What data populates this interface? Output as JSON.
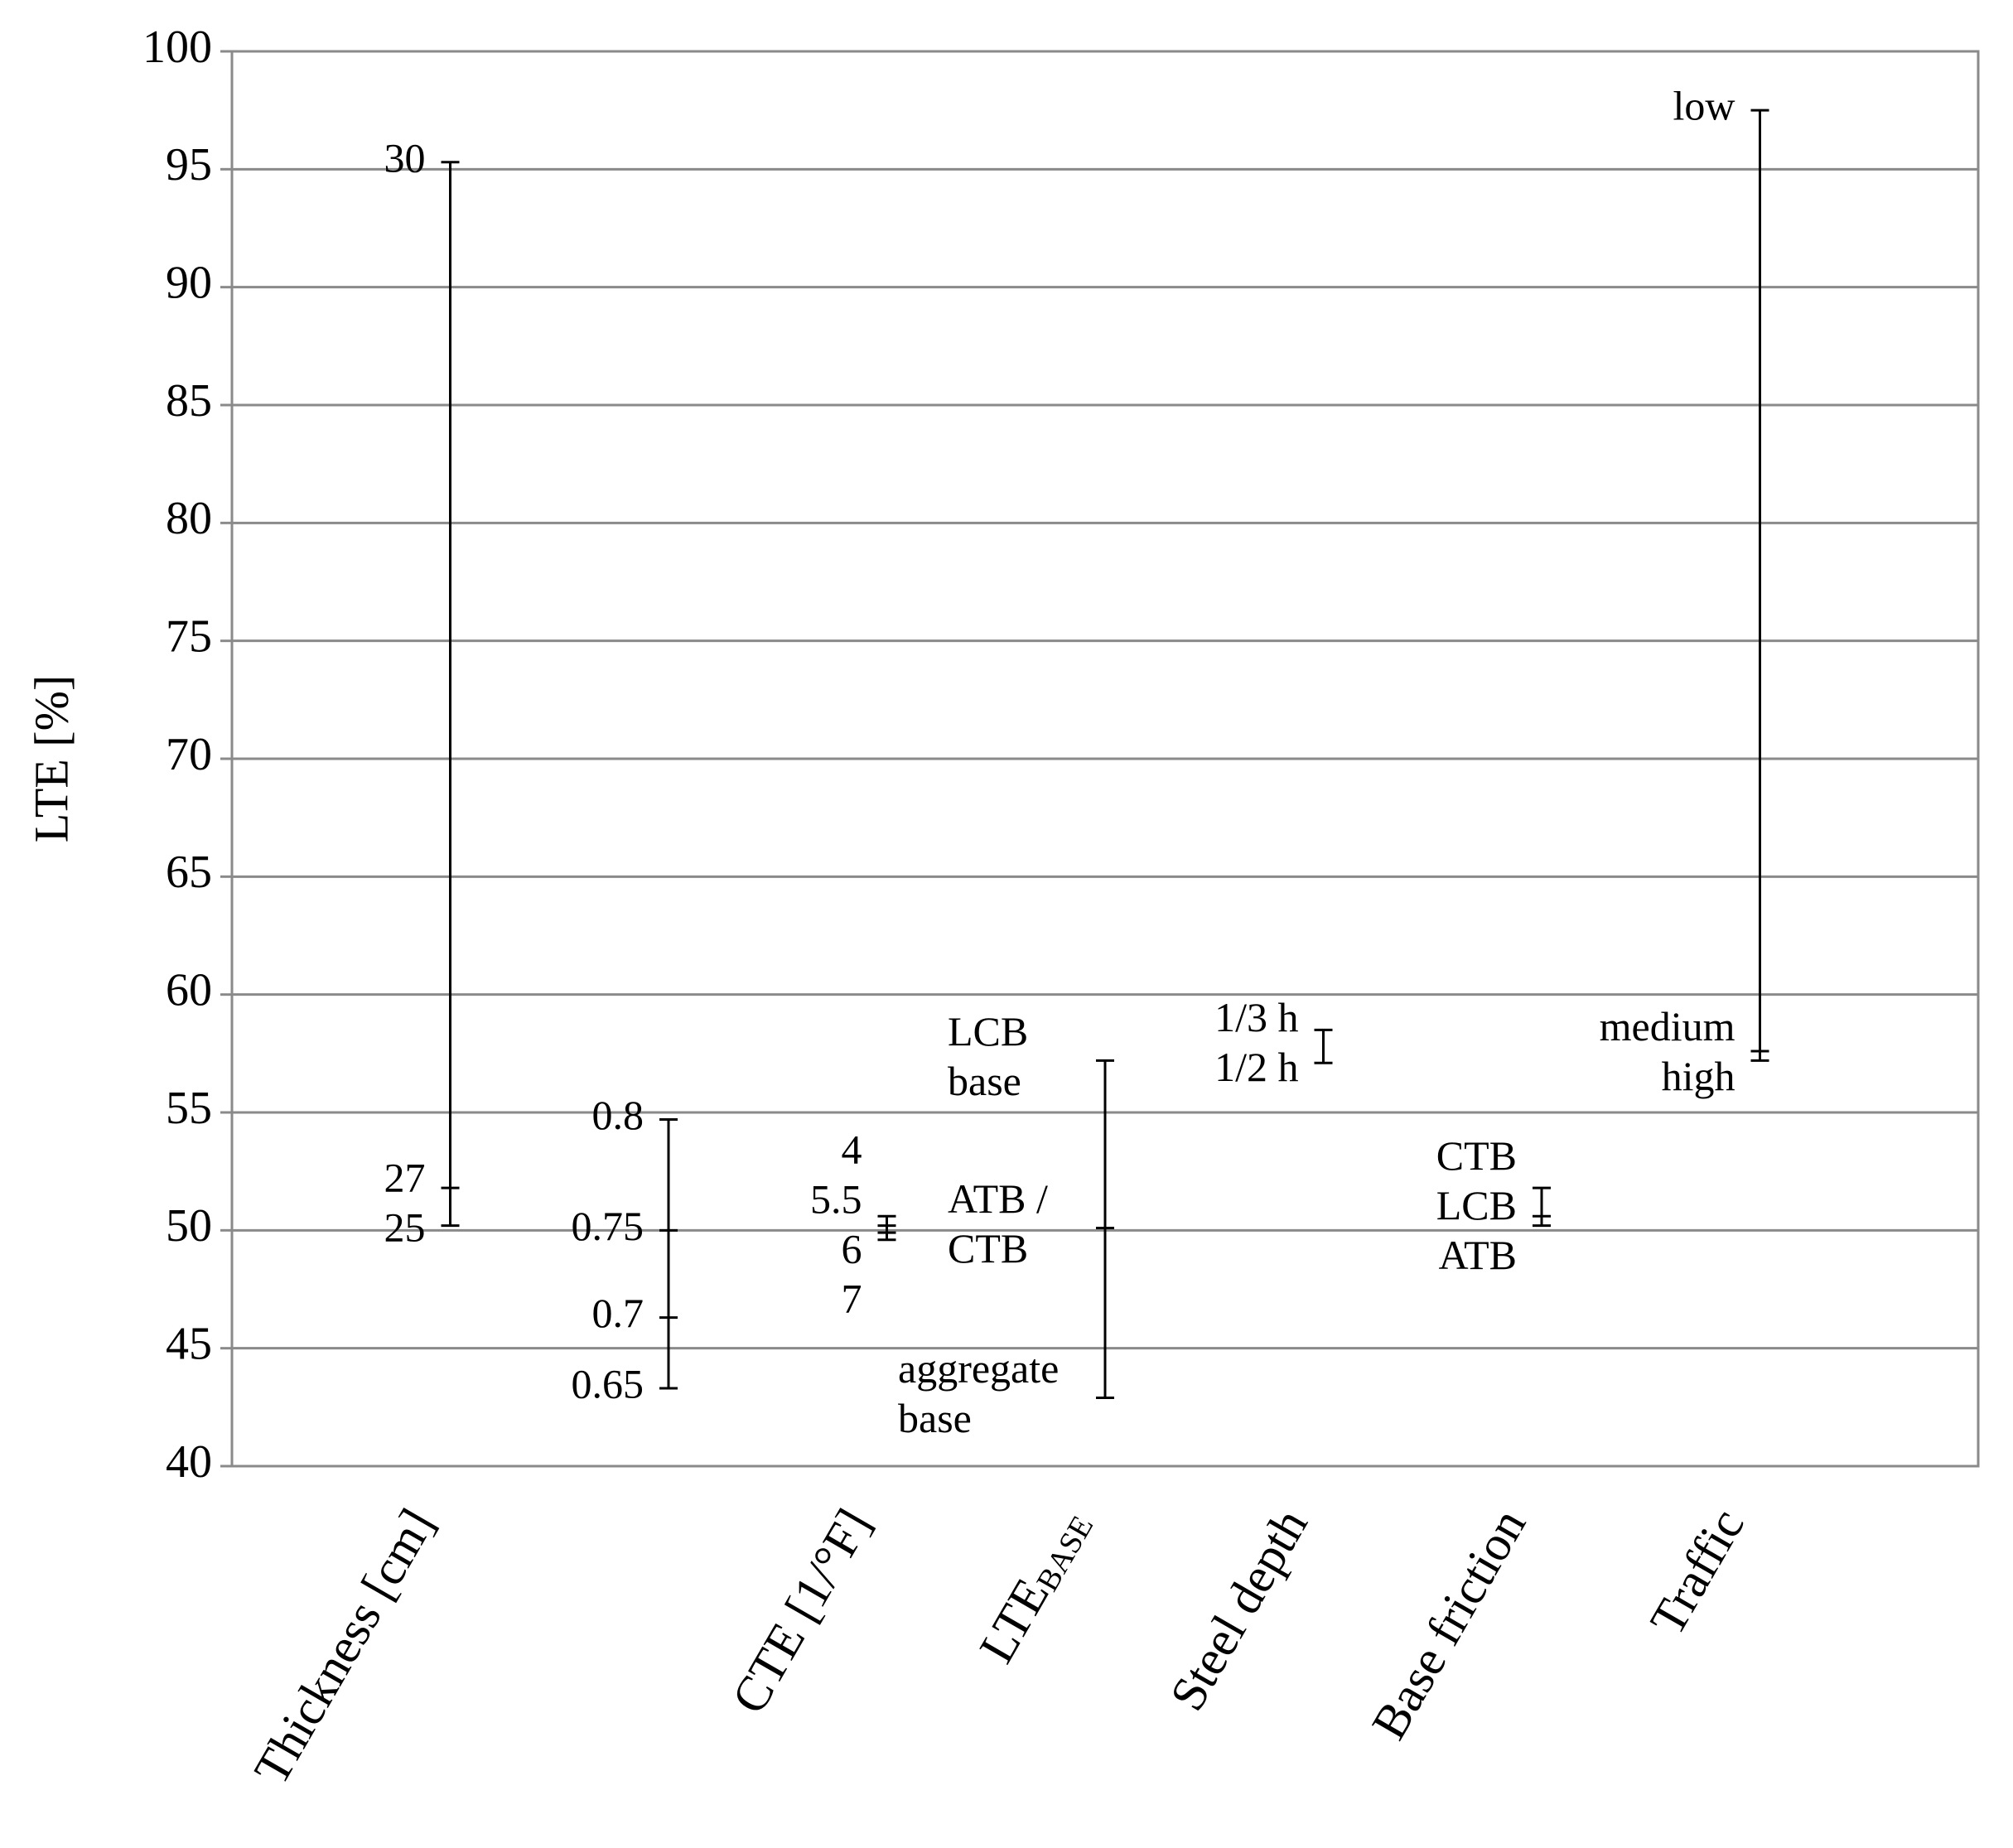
{
  "chart_data": {
    "type": "range",
    "y_label": "LTE [%]",
    "ylim": [
      40,
      100
    ],
    "yticks": [
      40,
      45,
      50,
      55,
      60,
      65,
      70,
      75,
      80,
      85,
      90,
      95,
      100
    ],
    "grid": true,
    "color": "#000000",
    "categories": [
      "Thickness [cm]",
      null,
      "CTE [1/°F]",
      "LTE",
      "Steel depth",
      "Base friction",
      "Traffic"
    ],
    "category_subscripts": [
      null,
      null,
      null,
      "BASE",
      null,
      null,
      null
    ],
    "series": [
      {
        "levels": [
          {
            "label": "30",
            "value": 95.3
          },
          {
            "label": "27",
            "value": 51.8
          },
          {
            "label": "25",
            "value": 50.2
          }
        ]
      },
      {
        "levels": [
          {
            "label": "0.8",
            "value": 54.7
          },
          {
            "label": "0.75",
            "value": 50.0
          },
          {
            "label": "0.7",
            "value": 46.3
          },
          {
            "label": "0.65",
            "value": 43.3
          }
        ]
      },
      {
        "levels": [
          {
            "label": "4",
            "value": 50.6
          },
          {
            "label": "5.5",
            "value": 50.2
          },
          {
            "label": "6",
            "value": 49.9
          },
          {
            "label": "7",
            "value": 49.6
          }
        ]
      },
      {
        "levels": [
          {
            "label": "LCB\nbase",
            "value": 57.2
          },
          {
            "label": "ATB /\nCTB",
            "value": 50.1
          },
          {
            "label": "aggregate\nbase",
            "value": 42.9
          }
        ]
      },
      {
        "levels": [
          {
            "label": "1/3 h",
            "value": 58.5
          },
          {
            "label": "1/2 h",
            "value": 57.1
          }
        ]
      },
      {
        "levels": [
          {
            "label": "CTB",
            "value": 51.8
          },
          {
            "label": "LCB",
            "value": 50.6
          },
          {
            "label": "ATB",
            "value": 50.2
          }
        ]
      },
      {
        "levels": [
          {
            "label": "low",
            "value": 97.5
          },
          {
            "label": "medium",
            "value": 57.6
          },
          {
            "label": "high",
            "value": 57.2
          }
        ]
      }
    ]
  }
}
